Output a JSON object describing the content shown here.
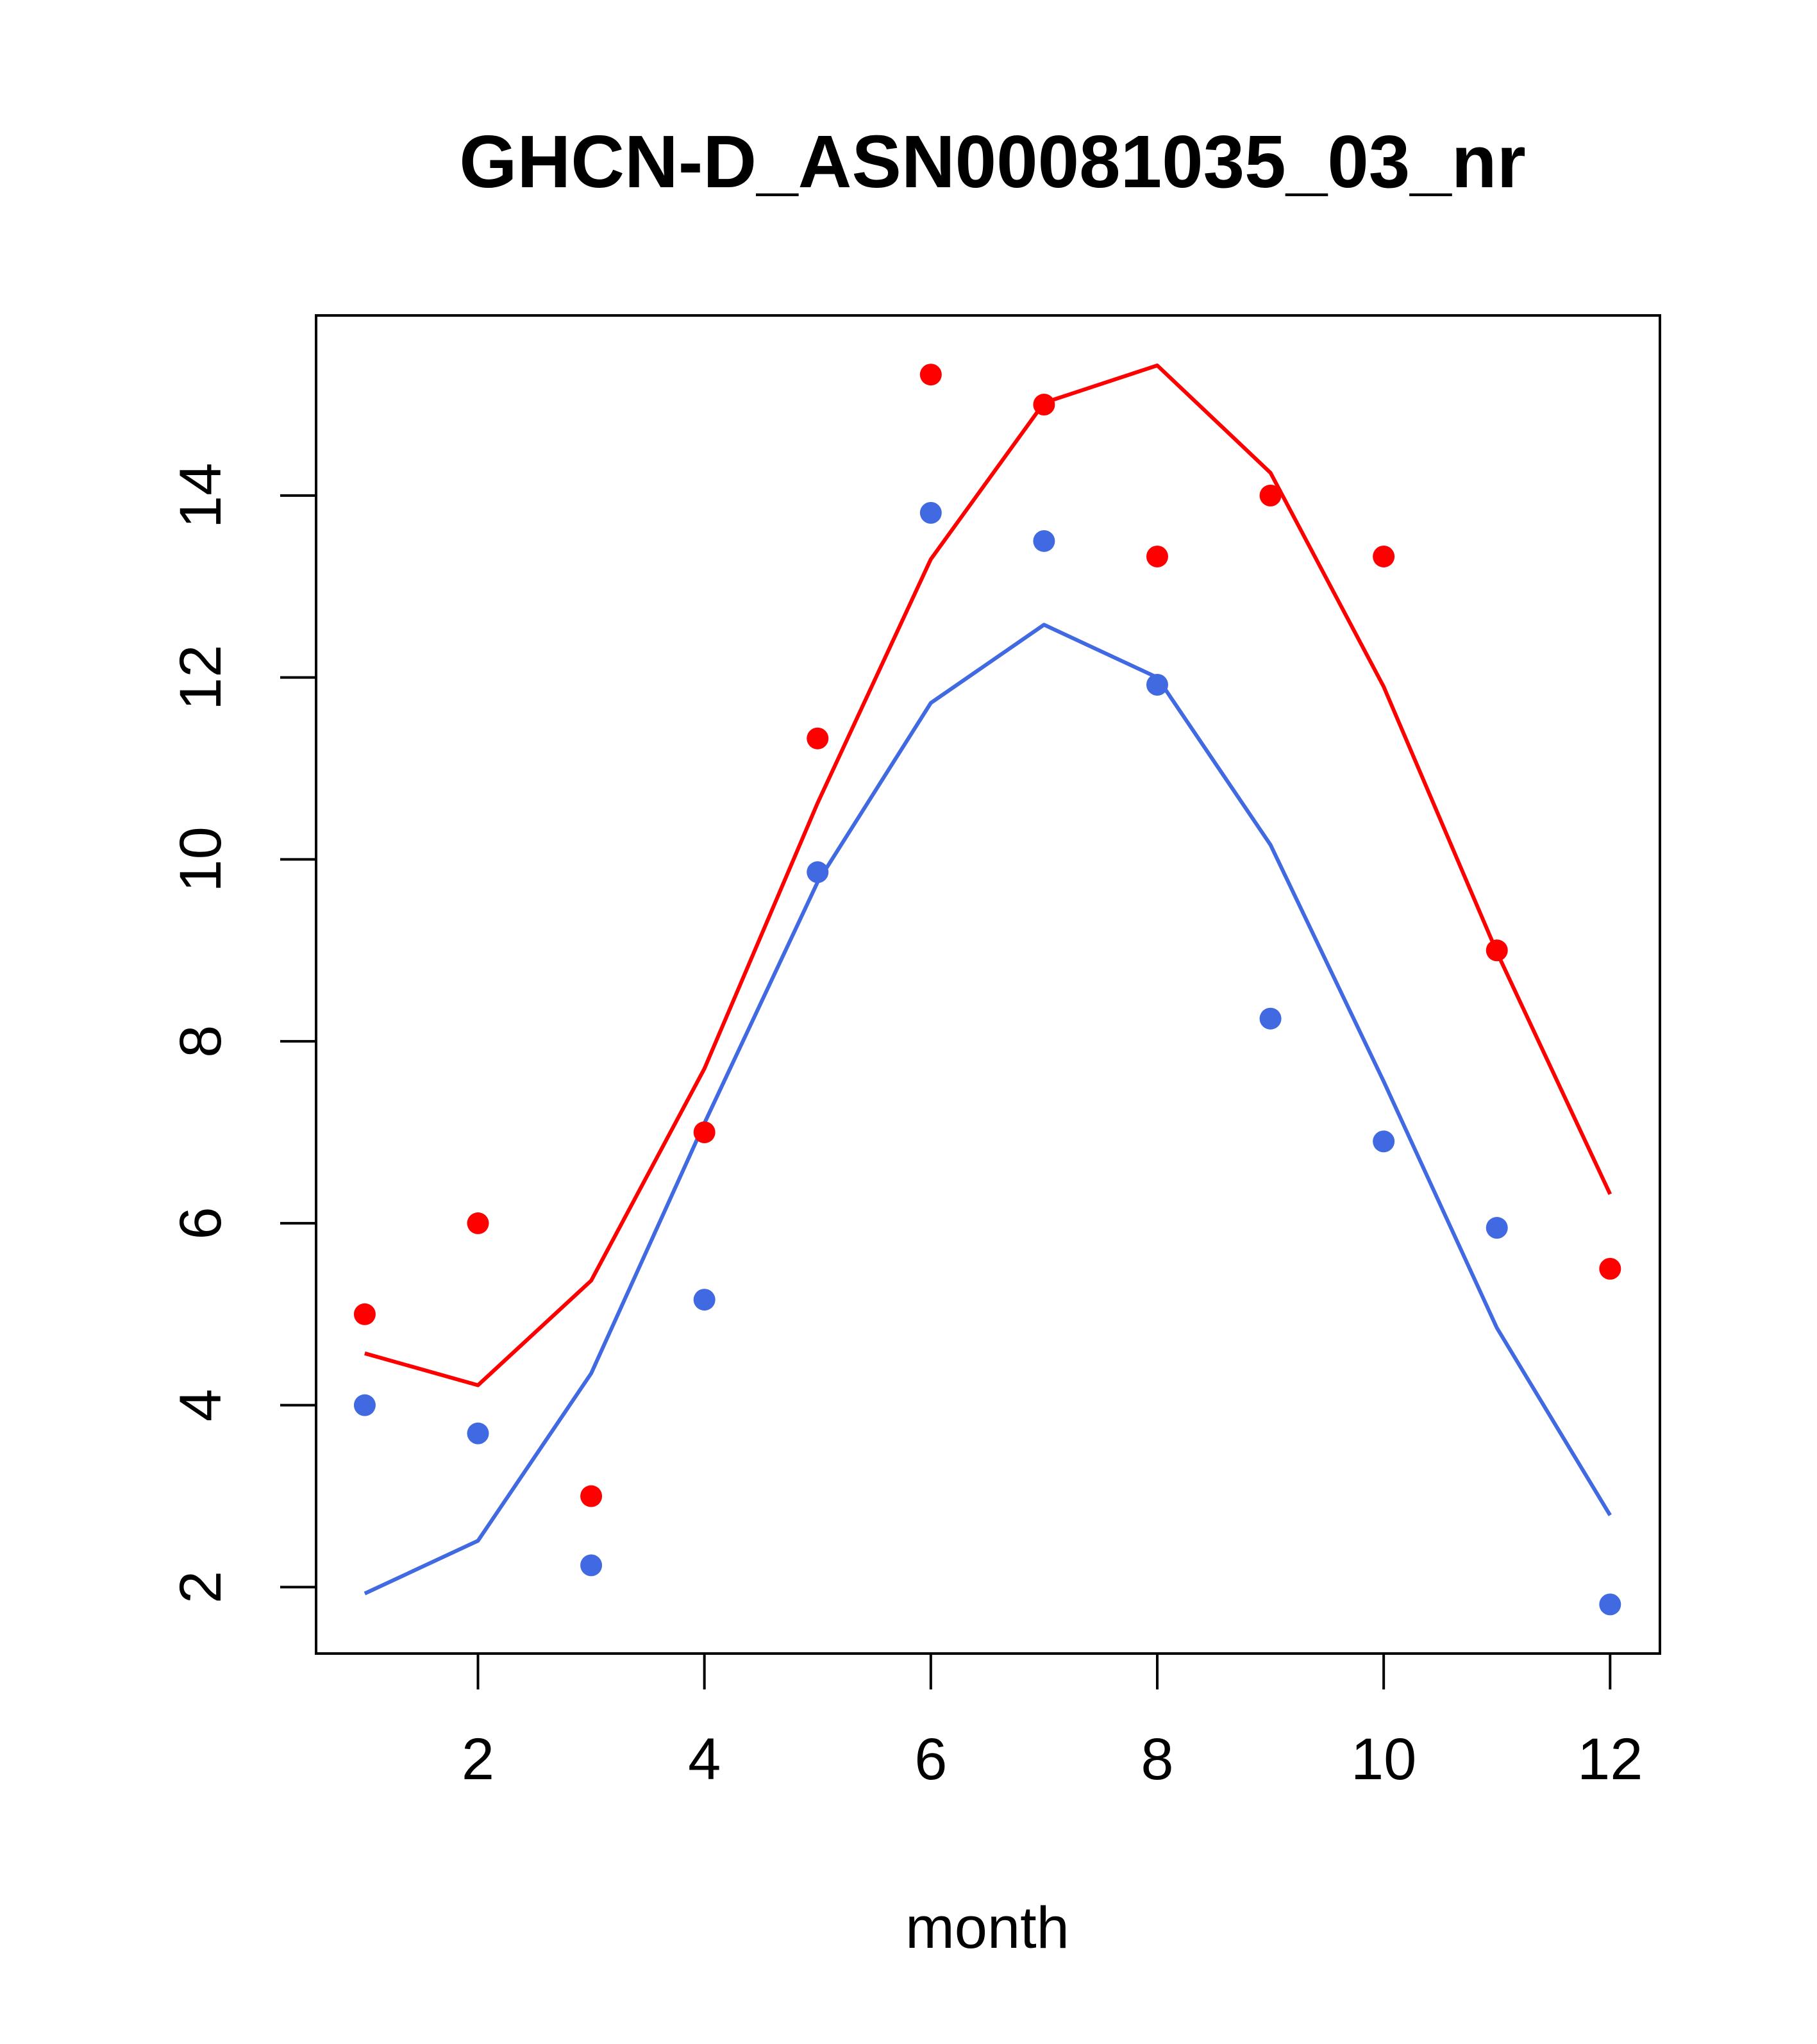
{
  "chart_data": {
    "type": "scatter",
    "title": "GHCN-D_ASN00081035_03_nr",
    "xlabel": "month",
    "ylabel": "",
    "xlim": [
      0.57,
      12.44
    ],
    "ylim": [
      1.27,
      15.98
    ],
    "xticks": [
      2,
      4,
      6,
      8,
      10,
      12
    ],
    "yticks": [
      2,
      4,
      6,
      8,
      10,
      12,
      14
    ],
    "grid": false,
    "legend": "none",
    "x": [
      1,
      2,
      3,
      4,
      5,
      6,
      7,
      8,
      9,
      10,
      11,
      12
    ],
    "series": [
      {
        "color": "#ff0000",
        "points": [
          5.0,
          6.0,
          3.0,
          7.0,
          11.33,
          15.33,
          15.0,
          13.33,
          14.0,
          13.33,
          9.0,
          5.5
        ],
        "line": [
          4.57,
          4.22,
          5.37,
          7.7,
          10.62,
          13.3,
          15.02,
          15.43,
          14.25,
          11.9,
          8.98,
          6.32
        ]
      },
      {
        "color": "#4169e1",
        "points": [
          4.0,
          3.69,
          2.24,
          5.16,
          9.86,
          13.81,
          13.5,
          11.92,
          8.25,
          6.9,
          5.95,
          1.81
        ],
        "line": [
          1.93,
          2.51,
          4.35,
          7.1,
          9.75,
          11.72,
          12.58,
          12.0,
          10.16,
          7.56,
          4.85,
          2.79
        ]
      }
    ]
  }
}
